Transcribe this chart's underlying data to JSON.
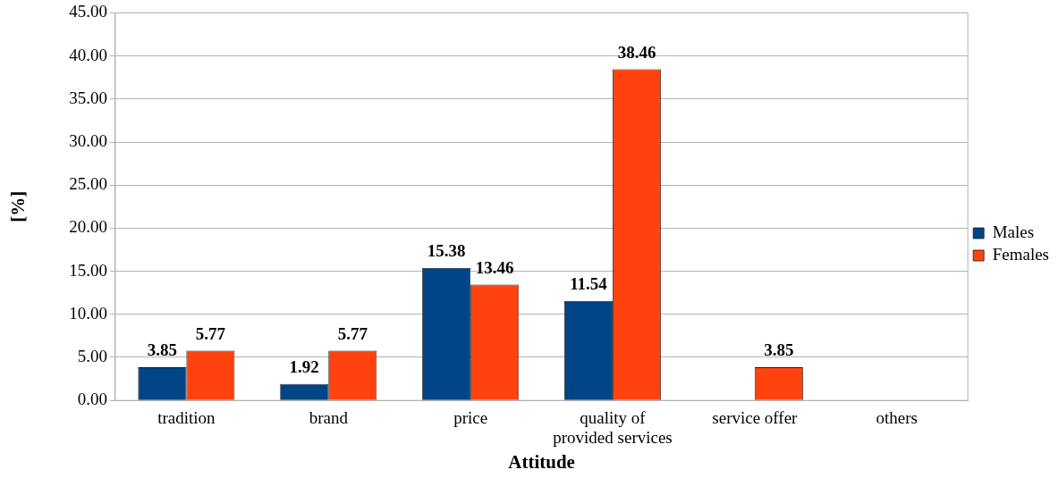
{
  "chart_data": {
    "type": "bar",
    "xlabel": "Attitude",
    "ylabel": "[%]",
    "categories": [
      "tradition",
      "brand",
      "price",
      "quality of provided services",
      "service offer",
      "others"
    ],
    "series": [
      {
        "name": "Males",
        "color": "#004586",
        "values": [
          3.85,
          1.92,
          15.38,
          11.54,
          0,
          0
        ],
        "value_labels": [
          "3.85",
          "1.92",
          "15.38",
          "11.54",
          null,
          null
        ]
      },
      {
        "name": "Females",
        "color": "#ff420e",
        "values": [
          5.77,
          5.77,
          13.46,
          38.46,
          3.85,
          0
        ],
        "value_labels": [
          "5.77",
          "5.77",
          "13.46",
          "38.46",
          "3.85",
          null
        ]
      }
    ],
    "ylim": [
      0,
      45
    ],
    "yticks": [
      {
        "value": 0,
        "label": "0.00"
      },
      {
        "value": 5,
        "label": "5.00"
      },
      {
        "value": 10,
        "label": "10.00"
      },
      {
        "value": 15,
        "label": "15.00"
      },
      {
        "value": 20,
        "label": "20.00"
      },
      {
        "value": 25,
        "label": "25.00"
      },
      {
        "value": 30,
        "label": "30.00"
      },
      {
        "value": 35,
        "label": "35.00"
      },
      {
        "value": 40,
        "label": "40.00"
      },
      {
        "value": 45,
        "label": "45.00"
      }
    ],
    "grid": "y",
    "legend": "right"
  }
}
